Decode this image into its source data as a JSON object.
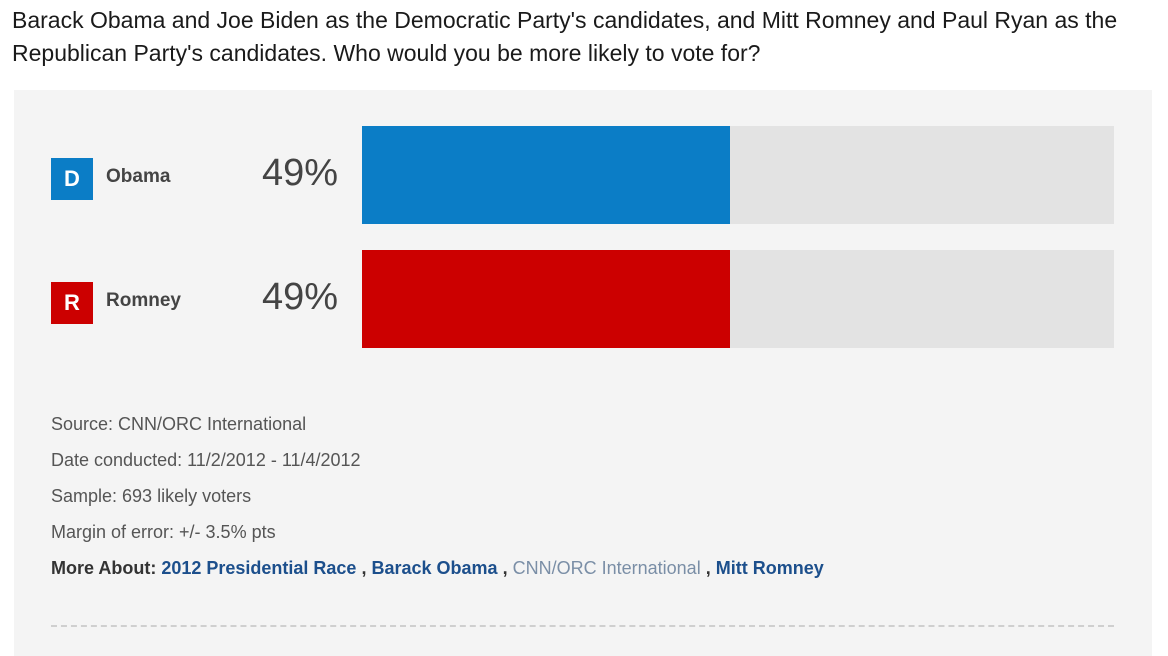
{
  "question": "Barack Obama and Joe Biden as the Democratic Party's candidates, and Mitt Romney and Paul Ryan as the Republican Party's candidates. Who would you be more likely to vote for?",
  "chart_data": {
    "type": "bar",
    "orientation": "horizontal",
    "categories": [
      "Obama",
      "Romney"
    ],
    "values": [
      49,
      49
    ],
    "value_labels": [
      "49%",
      "49%"
    ],
    "xlim": [
      0,
      100
    ],
    "parties": [
      "D",
      "R"
    ],
    "colors": [
      "#0b7dc6",
      "#cc0000"
    ],
    "track_color": "#e3e3e3",
    "title": "",
    "xlabel": "",
    "ylabel": ""
  },
  "meta": {
    "source": "Source: CNN/ORC International",
    "date": "Date conducted: 11/2/2012 - 11/4/2012",
    "sample": "Sample: 693 likely voters",
    "margin": "Margin of error: +/- 3.5% pts",
    "more_label": "More About:",
    "links": [
      "2012 Presidential Race",
      "Barack Obama",
      "CNN/ORC International",
      "Mitt Romney"
    ]
  }
}
